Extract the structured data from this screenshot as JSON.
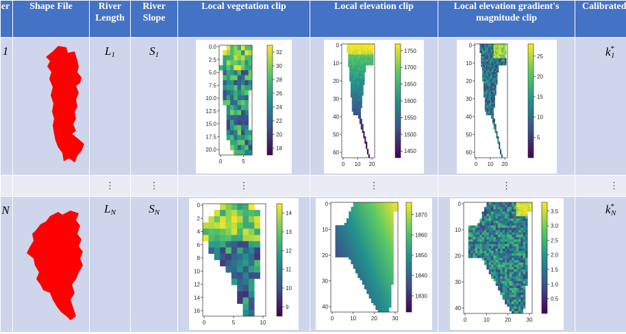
{
  "headers": {
    "col0": "er",
    "col1": "Shape File",
    "col2_line1": "River",
    "col2_line2": "Length",
    "col3_line1": "River",
    "col3_line2": "Slope",
    "col4": "Local vegetation clip",
    "col5": "Local elevation clip",
    "col6_line1": "Local elevation gradient's",
    "col6_line2": "magnitude clip",
    "col7": "Calibrated"
  },
  "row1": {
    "id_fragment": "1",
    "length_symbol": "L",
    "length_sub": "1",
    "slope_symbol": "S",
    "slope_sub": "1",
    "k_symbol": "k",
    "k_sub": "1",
    "k_sup": "*"
  },
  "ellipsis_row": {
    "c2": "⋮",
    "c3": "⋮",
    "c4": "⋮",
    "c5": "⋮",
    "c6": "⋮",
    "c7": "⋮",
    "c8": "⋮"
  },
  "row2": {
    "id_fragment": "N",
    "length_symbol": "L",
    "length_sub": "N",
    "slope_symbol": "S",
    "slope_sub": "N",
    "k_symbol": "k",
    "k_sub": "N",
    "k_sup": "*"
  },
  "colors": {
    "header_bg": "#4472c4",
    "body_bg": "#cfd5ea",
    "dots_bg": "#e9ebf5",
    "shape_fill": "#ff0000"
  },
  "chart_data": [
    {
      "type": "heatmap",
      "title": "Local vegetation clip (row 1)",
      "x_ticks": [
        "0",
        "5"
      ],
      "y_ticks": [
        "0.0",
        "2.5",
        "5.0",
        "7.5",
        "10.0",
        "12.5",
        "15.0",
        "17.5",
        "20.0"
      ],
      "colorbar_ticks": [
        "32",
        "30",
        "28",
        "26",
        "24",
        "22",
        "20",
        "18"
      ],
      "colorbar_range": [
        17,
        33
      ]
    },
    {
      "type": "heatmap",
      "title": "Local elevation clip (row 1)",
      "x_ticks": [
        "0",
        "10",
        "20"
      ],
      "y_ticks": [
        "0",
        "10",
        "20",
        "30",
        "40",
        "50",
        "60"
      ],
      "colorbar_ticks": [
        "1750",
        "1700",
        "1650",
        "1600",
        "1550",
        "1500",
        "1450"
      ],
      "colorbar_range": [
        1430,
        1770
      ]
    },
    {
      "type": "heatmap",
      "title": "Local elevation gradient magnitude clip (row 1)",
      "x_ticks": [
        "0",
        "10",
        "20"
      ],
      "y_ticks": [
        "0",
        "10",
        "20",
        "30",
        "40",
        "50",
        "60"
      ],
      "colorbar_ticks": [
        "25",
        "20",
        "15",
        "10",
        "5"
      ],
      "colorbar_range": [
        0,
        28
      ]
    },
    {
      "type": "heatmap",
      "title": "Local vegetation clip (row N)",
      "x_ticks": [
        "0",
        "5",
        "10"
      ],
      "y_ticks": [
        "0",
        "2",
        "4",
        "6",
        "8",
        "10",
        "12",
        "14",
        "16"
      ],
      "colorbar_ticks": [
        "14",
        "13",
        "12",
        "11",
        "10",
        "9"
      ],
      "colorbar_range": [
        8.5,
        14.5
      ]
    },
    {
      "type": "heatmap",
      "title": "Local elevation clip (row N)",
      "x_ticks": [
        "0",
        "10",
        "20",
        "30"
      ],
      "y_ticks": [
        "0",
        "10",
        "20",
        "30",
        "40"
      ],
      "colorbar_ticks": [
        "1870",
        "1860",
        "1850",
        "1840",
        "1830"
      ],
      "colorbar_range": [
        1822,
        1876
      ]
    },
    {
      "type": "heatmap",
      "title": "Local elevation gradient magnitude clip (row N)",
      "x_ticks": [
        "0",
        "10",
        "20",
        "30"
      ],
      "y_ticks": [
        "0",
        "10",
        "20",
        "30",
        "40"
      ],
      "colorbar_ticks": [
        "3.5",
        "3.0",
        "2.5",
        "2.0",
        "1.5",
        "1.0",
        "0.5"
      ],
      "colorbar_range": [
        0,
        3.8
      ]
    }
  ]
}
